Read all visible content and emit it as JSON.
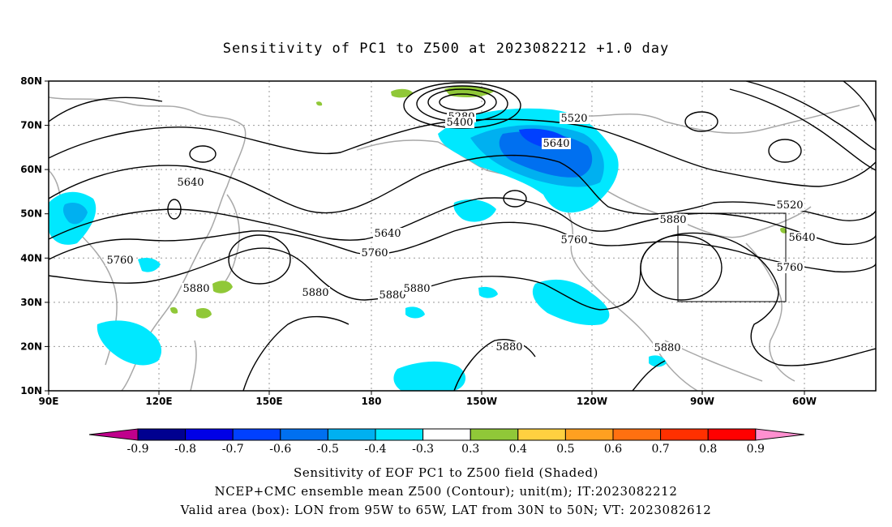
{
  "title": "Sensitivity of PC1 to Z500 at 2023082212 +1.0 day",
  "map": {
    "lat_ticks": [
      "80N",
      "70N",
      "60N",
      "50N",
      "40N",
      "30N",
      "20N",
      "10N"
    ],
    "lon_ticks": [
      "90E",
      "120E",
      "150E",
      "180",
      "150W",
      "120W",
      "90W",
      "60W"
    ],
    "contour_labels": [
      "5280",
      "5400",
      "5520",
      "5640",
      "5640",
      "5640",
      "5640",
      "5760",
      "5760",
      "5760",
      "5760",
      "5880",
      "5880",
      "5880",
      "5880",
      "5880",
      "5880",
      "5880",
      "5520",
      "5640"
    ],
    "valid_box": {
      "lon_from": "95W",
      "lon_to": "65W",
      "lat_from": "30N",
      "lat_to": "50N"
    }
  },
  "colorbar": {
    "ticks": [
      "-0.9",
      "-0.8",
      "-0.7",
      "-0.6",
      "-0.5",
      "-0.4",
      "-0.3",
      "0.3",
      "0.4",
      "0.5",
      "0.6",
      "0.7",
      "0.8",
      "0.9"
    ],
    "colors": [
      "#c0008c",
      "#000090",
      "#0000e6",
      "#0040ff",
      "#0070f0",
      "#00b0f0",
      "#00e8ff",
      "#ffffff",
      "#90c838",
      "#ffd040",
      "#ffa020",
      "#ff7010",
      "#ff3000",
      "#ff0000",
      "#ff90d0"
    ]
  },
  "caption": {
    "line1": "Sensitivity of EOF PC1 to Z500 field (Shaded)",
    "line2": "NCEP+CMC ensemble mean Z500 (Contour); unit(m); IT:2023082212",
    "line3": "Valid area (box): LON from 95W to 65W, LAT from 30N to 50N; VT: 2023082612"
  }
}
